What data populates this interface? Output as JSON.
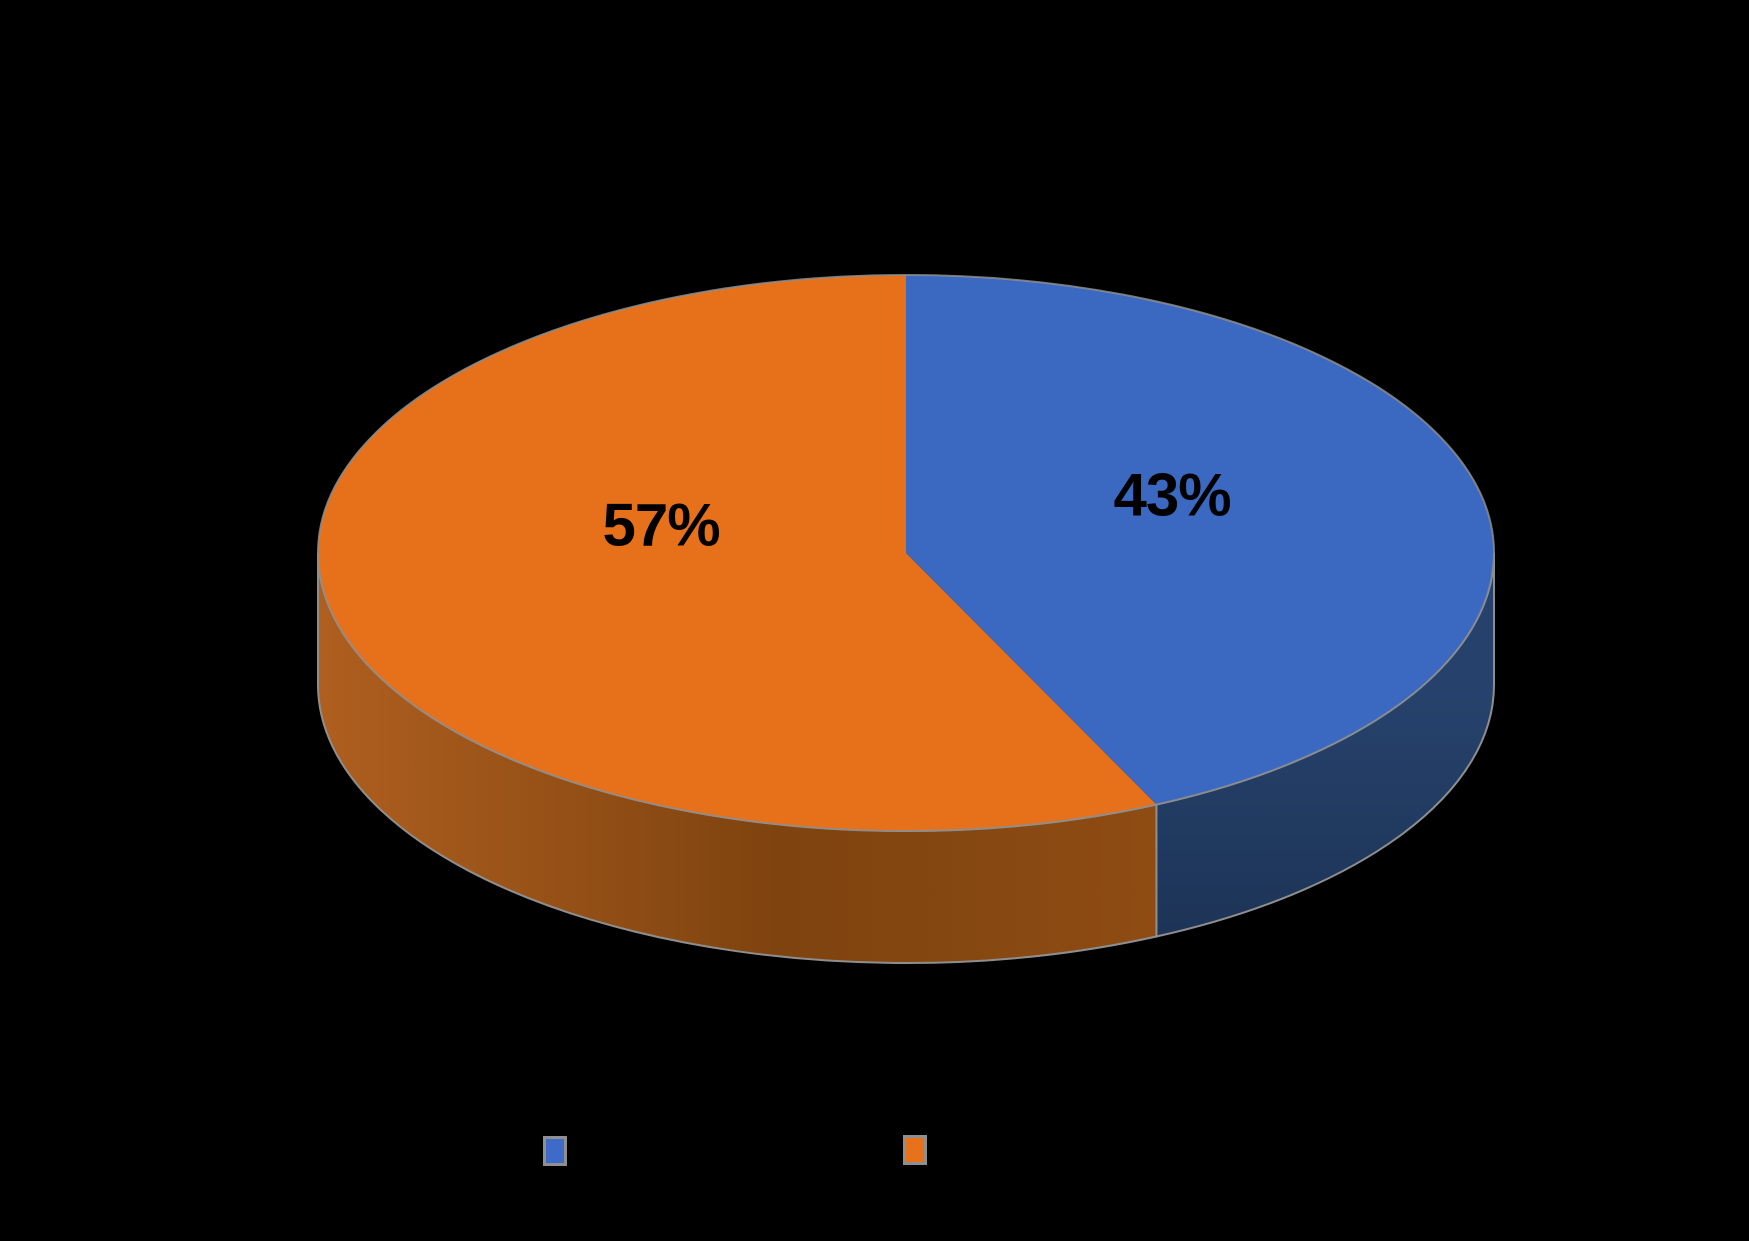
{
  "background_color": "#000000",
  "chart_data": {
    "type": "pie",
    "style": "3d",
    "title": "",
    "values": [
      43,
      57
    ],
    "data_labels": [
      "43%",
      "57%"
    ],
    "slice_colors": [
      "#3B68C0",
      "#E7701A"
    ],
    "side_wall_colors": [
      [
        "#26426C",
        "#1C3254"
      ],
      [
        "#AF5F1F",
        "#7E430F",
        "#8E4C13"
      ]
    ],
    "edge_fringe_color": "#8E8E8E",
    "data_label_color": "#000000",
    "legend_position": "bottom",
    "legend": [
      {
        "marker_color": "#3E6BC8",
        "label": ""
      },
      {
        "marker_color": "#E8721C",
        "label": ""
      }
    ]
  }
}
